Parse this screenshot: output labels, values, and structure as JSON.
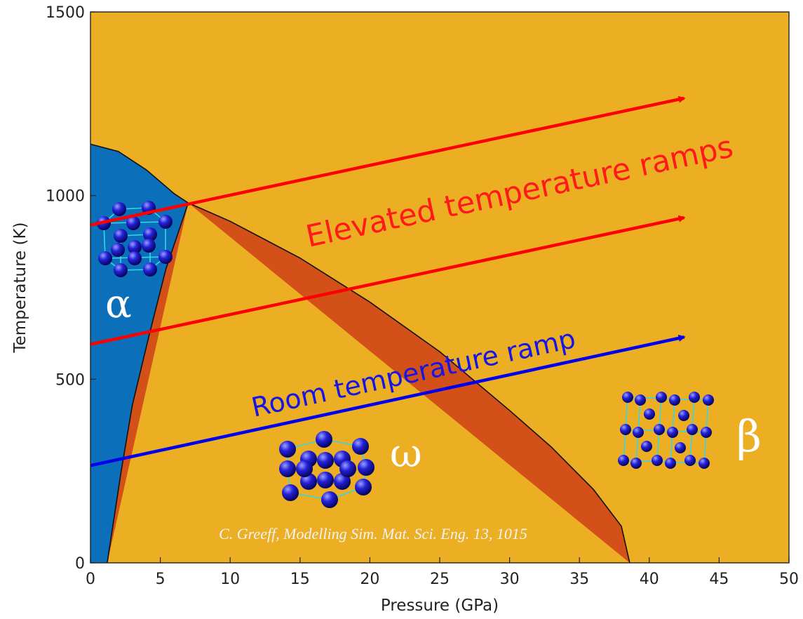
{
  "chart_data": {
    "type": "area",
    "title": "",
    "xlabel": "Pressure (GPa)",
    "ylabel": "Temperature (K)",
    "xlim": [
      0,
      50
    ],
    "ylim": [
      0,
      1500
    ],
    "xticks": [
      0,
      5,
      10,
      15,
      20,
      25,
      30,
      35,
      40,
      45,
      50
    ],
    "yticks": [
      0,
      500,
      1000,
      1500
    ],
    "grid": false,
    "legend": "none",
    "regions": [
      {
        "name": "α",
        "color": "#0b6fba",
        "boundary_alpha_omega": [
          [
            1.2,
            0
          ],
          [
            1.6,
            100
          ],
          [
            2.2,
            250
          ],
          [
            3.0,
            430
          ],
          [
            4.2,
            620
          ],
          [
            5.4,
            800
          ],
          [
            7.0,
            980
          ]
        ],
        "boundary_alpha_beta": [
          [
            0,
            1140
          ],
          [
            2,
            1120
          ],
          [
            4,
            1070
          ],
          [
            6,
            1005
          ],
          [
            7.0,
            980
          ]
        ]
      },
      {
        "name": "ω",
        "color": "#d35118",
        "boundary_omega_beta": [
          [
            7.0,
            980
          ],
          [
            10,
            930
          ],
          [
            15,
            830
          ],
          [
            20,
            710
          ],
          [
            25,
            575
          ],
          [
            30,
            415
          ],
          [
            33,
            315
          ],
          [
            36,
            200
          ],
          [
            38,
            100
          ],
          [
            38.6,
            0
          ]
        ]
      },
      {
        "name": "β",
        "color": "#ecae23"
      }
    ],
    "ramps": [
      {
        "label": "Elevated temperature ramps",
        "color": "#ff0000",
        "x": [
          0,
          42.5
        ],
        "y": [
          920,
          1265
        ]
      },
      {
        "label": "",
        "color": "#ff0000",
        "x": [
          0,
          42.5
        ],
        "y": [
          595,
          940
        ]
      },
      {
        "label": "Room temperature ramp",
        "color": "#0000ee",
        "x": [
          0,
          42.5
        ],
        "y": [
          265,
          615
        ]
      }
    ],
    "annotations": {
      "alpha": "α",
      "omega": "ω",
      "beta": "β",
      "elevated": "Elevated temperature ramps",
      "room": "Room temperature ramp",
      "citation": "C. Greeff, Modelling Sim. Mat. Sci. Eng. 13, 1015"
    }
  }
}
